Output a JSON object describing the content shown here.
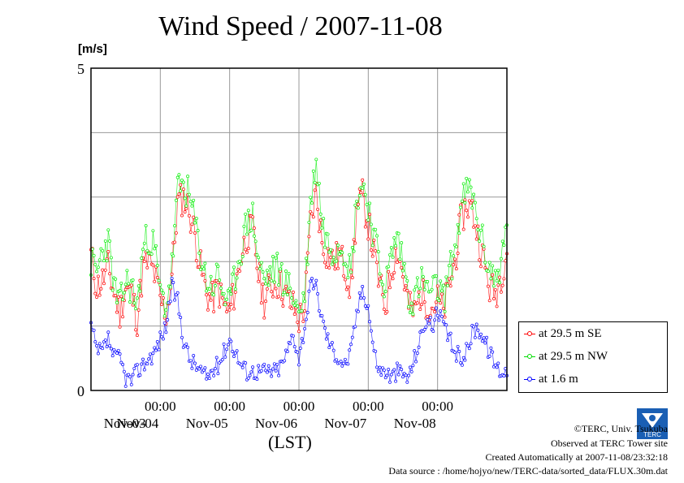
{
  "chart_data": {
    "type": "line",
    "title": "Wind Speed / 2007-11-08",
    "ylabel": "[m/s]",
    "xlabel": "(LST)",
    "ylim": [
      0,
      5
    ],
    "ytick_labels": [
      "0",
      "5"
    ],
    "hgrid_values": [
      1,
      2,
      3,
      4
    ],
    "time_range_hours": [
      0,
      144
    ],
    "time_ticks": [
      {
        "hour": 24,
        "time": "00:00",
        "date": "Nov-04"
      },
      {
        "hour": 48,
        "time": "00:00",
        "date": "Nov-05"
      },
      {
        "hour": 72,
        "time": "00:00",
        "date": "Nov-06"
      },
      {
        "hour": 96,
        "time": "00:00",
        "date": "Nov-07"
      },
      {
        "hour": 120,
        "time": "00:00",
        "date": "Nov-08"
      }
    ],
    "first_date": {
      "hour": 12,
      "date": "Nov-03"
    },
    "grid": true,
    "series": [
      {
        "name": "at 29.5 m SE",
        "color": "#ff0000",
        "anchors_hours": [
          0,
          2,
          4,
          6,
          8,
          10,
          12,
          14,
          16,
          18,
          20,
          22,
          24,
          26,
          28,
          30,
          32,
          34,
          36,
          38,
          40,
          42,
          44,
          46,
          48,
          50,
          52,
          54,
          56,
          58,
          60,
          62,
          64,
          66,
          68,
          70,
          72,
          74,
          76,
          78,
          80,
          82,
          84,
          86,
          88,
          90,
          92,
          94,
          96,
          98,
          100,
          102,
          104,
          106,
          108,
          110,
          112,
          114,
          116,
          118,
          120,
          122,
          124,
          126,
          128,
          130,
          132,
          134,
          136,
          138,
          140,
          142,
          144
        ],
        "anchors_values": [
          2.1,
          1.6,
          1.7,
          1.9,
          1.5,
          1.2,
          1.6,
          1.5,
          1.1,
          1.9,
          2.0,
          1.8,
          1.4,
          1.2,
          1.8,
          2.9,
          3.0,
          2.8,
          2.4,
          1.9,
          1.5,
          1.4,
          1.6,
          1.3,
          1.2,
          1.6,
          2.1,
          2.4,
          2.5,
          1.8,
          1.4,
          1.6,
          1.7,
          1.6,
          1.4,
          1.3,
          1.1,
          1.3,
          2.6,
          3.1,
          2.3,
          2.1,
          2.0,
          2.1,
          1.9,
          1.6,
          2.8,
          3.0,
          2.6,
          2.1,
          1.6,
          1.3,
          1.9,
          2.2,
          1.8,
          1.3,
          1.2,
          1.5,
          1.4,
          1.3,
          1.4,
          1.2,
          1.6,
          2.0,
          2.6,
          2.9,
          2.8,
          2.4,
          2.0,
          1.6,
          1.5,
          1.8,
          2.2
        ]
      },
      {
        "name": "at 29.5 m NW",
        "color": "#00ee00",
        "anchors_hours": [
          0,
          2,
          4,
          6,
          8,
          10,
          12,
          14,
          16,
          18,
          20,
          22,
          24,
          26,
          28,
          30,
          32,
          34,
          36,
          38,
          40,
          42,
          44,
          46,
          48,
          50,
          52,
          54,
          56,
          58,
          60,
          62,
          64,
          66,
          68,
          70,
          72,
          74,
          76,
          78,
          80,
          82,
          84,
          86,
          88,
          90,
          92,
          94,
          96,
          98,
          100,
          102,
          104,
          106,
          108,
          110,
          112,
          114,
          116,
          118,
          120,
          122,
          124,
          126,
          128,
          130,
          132,
          134,
          136,
          138,
          140,
          142,
          144
        ],
        "anchors_values": [
          2.0,
          1.8,
          2.2,
          2.3,
          1.6,
          1.3,
          1.7,
          1.6,
          1.3,
          2.2,
          2.4,
          2.2,
          1.5,
          1.3,
          1.9,
          3.1,
          3.2,
          3.0,
          2.6,
          2.1,
          1.7,
          1.6,
          1.8,
          1.5,
          1.3,
          1.8,
          2.2,
          2.6,
          2.7,
          2.0,
          1.7,
          1.8,
          1.9,
          1.8,
          1.6,
          1.5,
          1.2,
          1.5,
          2.9,
          3.6,
          2.6,
          2.3,
          2.2,
          2.3,
          2.2,
          1.8,
          3.0,
          3.2,
          2.9,
          2.4,
          1.9,
          1.6,
          2.1,
          2.4,
          2.0,
          1.5,
          1.4,
          1.7,
          1.6,
          1.5,
          1.6,
          1.4,
          1.8,
          2.2,
          2.8,
          3.1,
          3.0,
          2.6,
          2.2,
          1.9,
          1.7,
          2.0,
          2.5
        ]
      },
      {
        "name": "at 1.6 m",
        "color": "#0000ff",
        "anchors_hours": [
          0,
          2,
          4,
          6,
          8,
          10,
          12,
          14,
          16,
          18,
          20,
          22,
          24,
          26,
          28,
          30,
          32,
          34,
          36,
          38,
          40,
          42,
          44,
          46,
          48,
          50,
          52,
          54,
          56,
          58,
          60,
          62,
          64,
          66,
          68,
          70,
          72,
          74,
          76,
          78,
          80,
          82,
          84,
          86,
          88,
          90,
          92,
          94,
          96,
          98,
          100,
          102,
          104,
          106,
          108,
          110,
          112,
          114,
          116,
          118,
          120,
          122,
          124,
          126,
          128,
          130,
          132,
          134,
          136,
          138,
          140,
          142,
          144
        ],
        "anchors_values": [
          1.0,
          0.6,
          0.6,
          0.8,
          0.5,
          0.5,
          0.2,
          0.15,
          0.3,
          0.4,
          0.5,
          0.6,
          0.8,
          1.0,
          1.6,
          1.4,
          0.8,
          0.5,
          0.4,
          0.3,
          0.2,
          0.3,
          0.4,
          0.6,
          0.8,
          0.6,
          0.4,
          0.3,
          0.3,
          0.3,
          0.3,
          0.3,
          0.3,
          0.4,
          0.6,
          0.9,
          0.5,
          1.0,
          1.6,
          1.6,
          1.1,
          0.8,
          0.6,
          0.5,
          0.4,
          0.6,
          1.2,
          1.6,
          1.3,
          0.6,
          0.3,
          0.3,
          0.2,
          0.3,
          0.25,
          0.2,
          0.5,
          0.8,
          1.1,
          1.0,
          1.2,
          1.0,
          0.8,
          0.6,
          0.5,
          0.6,
          0.9,
          1.0,
          0.8,
          0.6,
          0.4,
          0.3,
          0.3
        ]
      }
    ],
    "legend_position": "lower-right"
  },
  "credits": {
    "copyright": "©TERC, Univ. Tsukuba",
    "observed": "Observed at TERC Tower site",
    "created": "Created Automatically at 2007-11-08/23:32:18",
    "source": "Data source : /home/hojyo/new/TERC-data/sorted_data/FLUX.30m.dat"
  },
  "logo_text": "TERC"
}
